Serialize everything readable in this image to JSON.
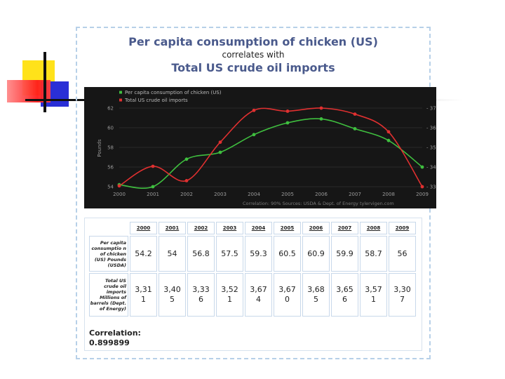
{
  "title": {
    "line1": "Per capita consumption of chicken (US)",
    "line2": "correlates with",
    "line3": "Total US crude oil imports"
  },
  "chart_data": {
    "type": "line",
    "x": [
      2000,
      2001,
      2002,
      2003,
      2004,
      2005,
      2006,
      2007,
      2008,
      2009
    ],
    "series": [
      {
        "name": "Per capita consumption of chicken (US)",
        "color": "#3fbf3f",
        "values": [
          54.2,
          54,
          56.8,
          57.5,
          59.3,
          60.5,
          60.9,
          59.9,
          58.7,
          56
        ]
      },
      {
        "name": "Total US crude oil imports",
        "color": "#e03030",
        "values": [
          3311,
          3405,
          3336,
          3521,
          3674,
          3670,
          3685,
          3656,
          3571,
          3307
        ]
      }
    ],
    "ylabel": "Pounds",
    "ylim": [
      54,
      62
    ],
    "yticks": [
      54,
      56,
      58,
      60,
      62
    ],
    "y2ticks_visible": [
      "- 33",
      "- 34",
      "- 35",
      "- 36",
      "- 37"
    ],
    "y2_display": [
      33,
      37
    ],
    "legend_position": "top-left",
    "footer": "Correlation: 90%   Sources: USDA & Dept. of Energy   tylervigen.com"
  },
  "table": {
    "years": [
      "2000",
      "2001",
      "2002",
      "2003",
      "2004",
      "2005",
      "2006",
      "2007",
      "2008",
      "2009"
    ],
    "row1_label": "Per capita consumptio n of chicken (US) Pounds (USDA)",
    "row1_values": [
      "54.2",
      "54",
      "56.8",
      "57.5",
      "59.3",
      "60.5",
      "60.9",
      "59.9",
      "58.7",
      "56"
    ],
    "row2_label": "Total US crude oil imports Millions of barrels (Dept. of Energy)",
    "row2_values": [
      [
        "3,31",
        "1"
      ],
      [
        "3,40",
        "5"
      ],
      [
        "3,33",
        "6"
      ],
      [
        "3,52",
        "1"
      ],
      [
        "3,67",
        "4"
      ],
      [
        "3,67",
        "0"
      ],
      [
        "3,68",
        "5"
      ],
      [
        "3,65",
        "6"
      ],
      [
        "3,57",
        "1"
      ],
      [
        "3,30",
        "7"
      ]
    ],
    "correlation_label": "Correlation:",
    "correlation_value": "0.899899"
  }
}
